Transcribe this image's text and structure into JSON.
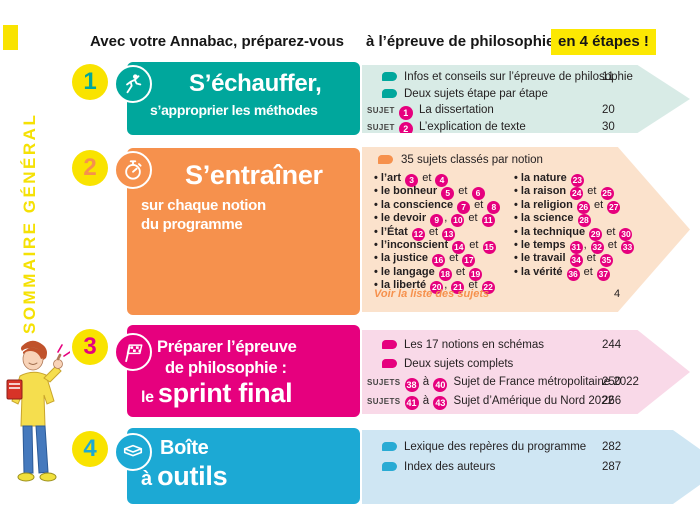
{
  "header": {
    "part1": "Avec votre Annabac, préparez-vous",
    "part2": "à l’épreuve de philosophie",
    "highlight": "en 4 étapes !"
  },
  "sidebar": {
    "vertical_label": "SOMMAIRE GÉNÉRAL"
  },
  "colors": {
    "yellow": "#f9e300",
    "teal": "#00a79c",
    "teal_light": "#d8ebe6",
    "orange": "#f6914d",
    "orange_light": "#fbe2cc",
    "pink": "#e6007e",
    "pink_light": "#f9d9e8",
    "blue": "#1ca9d4",
    "blue_light": "#cfe6f3",
    "text": "#231f20"
  },
  "sections": {
    "s1": {
      "number": "1",
      "banner": {
        "title": "S’échauffer,",
        "subtitle": "s’approprier les méthodes",
        "icon": "runner-icon"
      },
      "panel": {
        "rows": [
          {
            "type": "bullet",
            "text": "Infos et conseils sur l’épreuve de philosophie",
            "page": "11"
          },
          {
            "type": "bullet",
            "text": "Deux sujets étape par étape"
          },
          {
            "type": "sujet",
            "label": "SUJET",
            "nums": [
              "1"
            ],
            "text": "La dissertation",
            "page": "20"
          },
          {
            "type": "sujet",
            "label": "SUJET",
            "nums": [
              "2"
            ],
            "text": "L’explication de texte",
            "page": "30"
          }
        ]
      }
    },
    "s2": {
      "number": "2",
      "banner": {
        "title": "S’entraîner",
        "subtitle_line1": "sur chaque notion",
        "subtitle_line2": "du programme",
        "icon": "stopwatch-icon"
      },
      "panel": {
        "header": "35 sujets classés par notion",
        "notions_left": [
          {
            "name": "l’art",
            "nums": [
              "3",
              "4"
            ]
          },
          {
            "name": "le bonheur",
            "nums": [
              "5",
              "6"
            ]
          },
          {
            "name": "la conscience",
            "nums": [
              "7",
              "8"
            ]
          },
          {
            "name": "le devoir",
            "nums": [
              "9",
              "10",
              "11"
            ]
          },
          {
            "name": "l’État",
            "nums": [
              "12",
              "13"
            ]
          },
          {
            "name": "l’inconscient",
            "nums": [
              "14",
              "15"
            ]
          },
          {
            "name": "la justice",
            "nums": [
              "16",
              "17"
            ]
          },
          {
            "name": "le langage",
            "nums": [
              "18",
              "19"
            ]
          },
          {
            "name": "la liberté",
            "nums": [
              "20",
              "21",
              "22"
            ]
          }
        ],
        "notions_right": [
          {
            "name": "la nature",
            "nums": [
              "23"
            ]
          },
          {
            "name": "la raison",
            "nums": [
              "24",
              "25"
            ]
          },
          {
            "name": "la religion",
            "nums": [
              "26",
              "27"
            ]
          },
          {
            "name": "la science",
            "nums": [
              "28"
            ]
          },
          {
            "name": "la technique",
            "nums": [
              "29",
              "30"
            ]
          },
          {
            "name": "le temps",
            "nums": [
              "31",
              "32",
              "33"
            ]
          },
          {
            "name": "le travail",
            "nums": [
              "34",
              "35"
            ]
          },
          {
            "name": "la vérité",
            "nums": [
              "36",
              "37"
            ]
          }
        ],
        "footer_link": "Voir la liste des sujets",
        "footer_page": "4"
      }
    },
    "s3": {
      "number": "3",
      "banner": {
        "line1": "Préparer l’épreuve",
        "line2": "de philosophie :",
        "line3_small": "le ",
        "line3_big": "sprint final",
        "icon": "flag-icon"
      },
      "panel": {
        "rows": [
          {
            "type": "bullet",
            "text": "Les 17 notions en schémas",
            "page": "244"
          },
          {
            "type": "bullet",
            "text": "Deux sujets complets"
          },
          {
            "type": "sujet",
            "label": "SUJETS",
            "nums": [
              "38",
              "40"
            ],
            "joiner": " à ",
            "text": "Sujet de France métropolitaine 2022",
            "page": "250"
          },
          {
            "type": "sujet",
            "label": "SUJETS",
            "nums": [
              "41",
              "43"
            ],
            "joiner": " à ",
            "text": "Sujet d’Amérique du Nord 2022",
            "page": "266"
          }
        ]
      }
    },
    "s4": {
      "number": "4",
      "banner": {
        "title_small": "Boîte",
        "title_prefix": "à ",
        "title_big": "outils",
        "icon": "book-icon"
      },
      "panel": {
        "rows": [
          {
            "type": "bullet",
            "text": "Lexique des repères du programme",
            "page": "282"
          },
          {
            "type": "bullet",
            "text": "Index des auteurs",
            "page": "287"
          }
        ]
      }
    }
  }
}
